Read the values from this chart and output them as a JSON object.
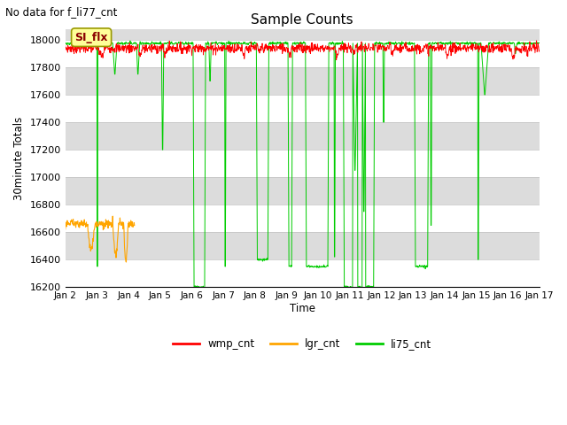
{
  "title": "Sample Counts",
  "subtitle": "No data for f_li77_cnt",
  "ylabel": "30minute Totals",
  "xlabel": "Time",
  "ylim": [
    16200,
    18080
  ],
  "fig_width": 6.4,
  "fig_height": 4.8,
  "dpi": 100,
  "bg_color": "#ffffff",
  "plot_bg_color": "#dcdcdc",
  "annotation_text": "SI_flx",
  "legend_items": [
    "wmp_cnt",
    "lgr_cnt",
    "li75_cnt"
  ],
  "legend_colors": [
    "#ff0000",
    "#ffa500",
    "#00cc00"
  ],
  "xtick_labels": [
    "Jan 2",
    "Jan 3",
    "Jan 4",
    "Jan 5",
    "Jan 6",
    "Jan 7",
    "Jan 8",
    "Jan 9",
    "Jan 10",
    "Jan 11",
    "Jan 12",
    "Jan 13",
    "Jan 14",
    "Jan 15",
    "Jan 16",
    "Jan 17"
  ],
  "ytick_values": [
    16200,
    16400,
    16600,
    16800,
    17000,
    17200,
    17400,
    17600,
    17800,
    18000
  ],
  "wmp_base": 17940,
  "wmp_noise": 18,
  "lgr_base": 16660,
  "lgr_noise": 15,
  "li75_base": 17975,
  "li75_noise": 5
}
